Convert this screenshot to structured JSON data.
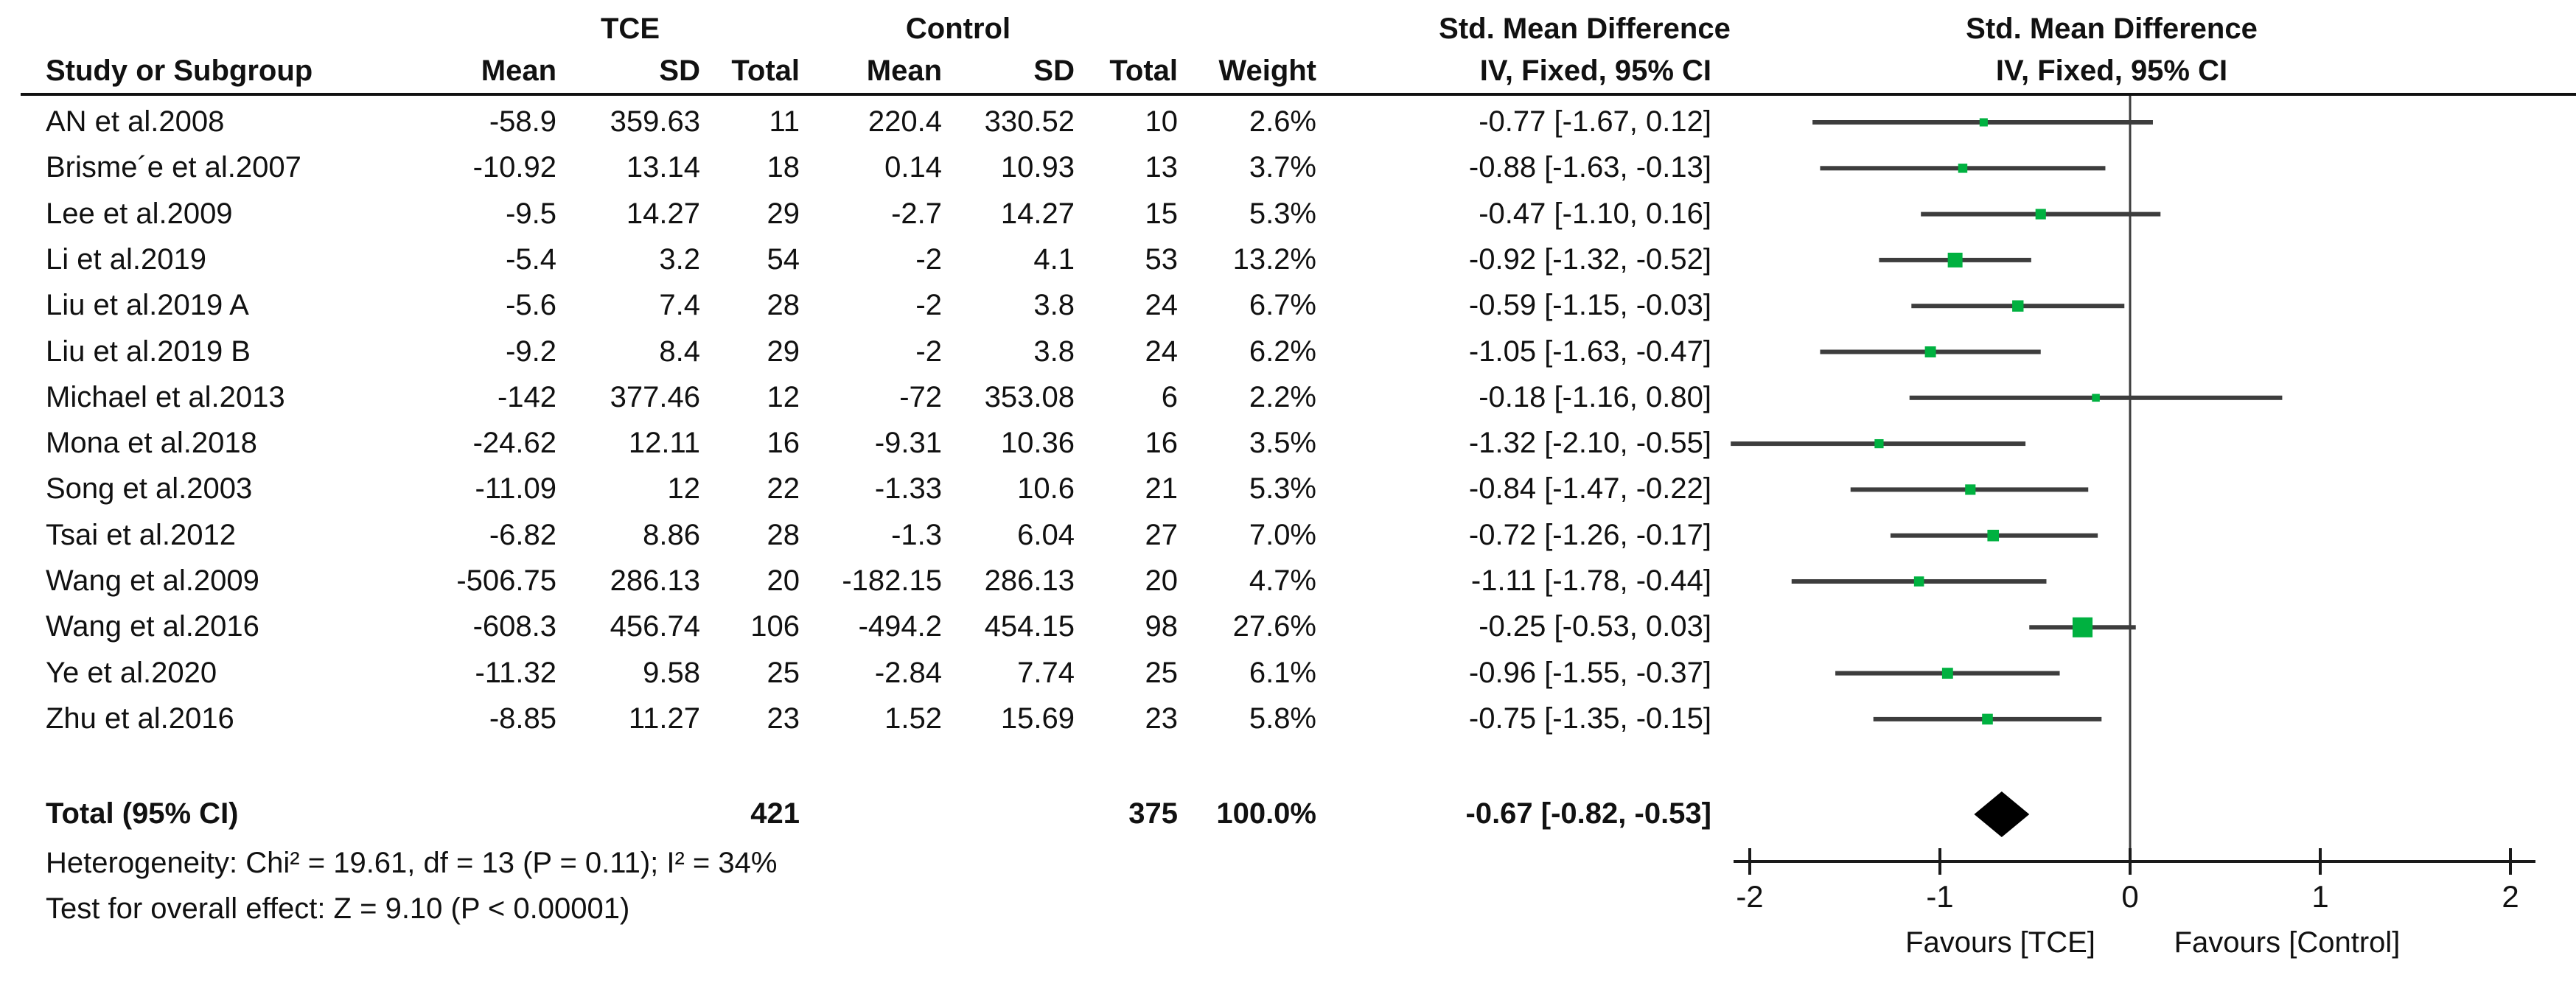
{
  "figure": {
    "background": "#ffffff"
  },
  "colors": {
    "marker": "#00B140",
    "ci_line": "#3d3d3d",
    "diamond": "#000000",
    "axis": "#1a1a1a",
    "text": "#111111"
  },
  "header": {
    "group_tce": "TCE",
    "group_control": "Control",
    "smd_title": "Std. Mean Difference",
    "smd_method": "IV, Fixed, 95% CI",
    "study": "Study or Subgroup",
    "mean": "Mean",
    "sd": "SD",
    "total": "Total",
    "weight": "Weight"
  },
  "chart_data": {
    "type": "forest",
    "effect_label": "Std. Mean Difference",
    "method_label": "IV, Fixed, 95% CI",
    "x_ticks": [
      -2,
      -1,
      0,
      1,
      2
    ],
    "xlim": [
      -2.1,
      2.13
    ],
    "favours_left": "Favours [TCE]",
    "favours_right": "Favours [Control]",
    "studies": [
      {
        "name": "AN et al.2008",
        "tce_mean": "-58.9",
        "tce_sd": "359.63",
        "tce_total": "11",
        "control_mean": "220.4",
        "control_sd": "330.52",
        "control_total": "10",
        "weight": "2.6%",
        "ci_text": "-0.77 [-1.67, 0.12]",
        "est": -0.77,
        "lo": -1.67,
        "hi": 0.12,
        "weight_pct": 2.6
      },
      {
        "name": "Brisme´e et al.2007",
        "tce_mean": "-10.92",
        "tce_sd": "13.14",
        "tce_total": "18",
        "control_mean": "0.14",
        "control_sd": "10.93",
        "control_total": "13",
        "weight": "3.7%",
        "ci_text": "-0.88 [-1.63, -0.13]",
        "est": -0.88,
        "lo": -1.63,
        "hi": -0.13,
        "weight_pct": 3.7
      },
      {
        "name": "Lee et al.2009",
        "tce_mean": "-9.5",
        "tce_sd": "14.27",
        "tce_total": "29",
        "control_mean": "-2.7",
        "control_sd": "14.27",
        "control_total": "15",
        "weight": "5.3%",
        "ci_text": "-0.47 [-1.10, 0.16]",
        "est": -0.47,
        "lo": -1.1,
        "hi": 0.16,
        "weight_pct": 5.3
      },
      {
        "name": "Li et al.2019",
        "tce_mean": "-5.4",
        "tce_sd": "3.2",
        "tce_total": "54",
        "control_mean": "-2",
        "control_sd": "4.1",
        "control_total": "53",
        "weight": "13.2%",
        "ci_text": "-0.92 [-1.32, -0.52]",
        "est": -0.92,
        "lo": -1.32,
        "hi": -0.52,
        "weight_pct": 13.2
      },
      {
        "name": "Liu et al.2019 A",
        "tce_mean": "-5.6",
        "tce_sd": "7.4",
        "tce_total": "28",
        "control_mean": "-2",
        "control_sd": "3.8",
        "control_total": "24",
        "weight": "6.7%",
        "ci_text": "-0.59 [-1.15, -0.03]",
        "est": -0.59,
        "lo": -1.15,
        "hi": -0.03,
        "weight_pct": 6.7
      },
      {
        "name": "Liu et al.2019 B",
        "tce_mean": "-9.2",
        "tce_sd": "8.4",
        "tce_total": "29",
        "control_mean": "-2",
        "control_sd": "3.8",
        "control_total": "24",
        "weight": "6.2%",
        "ci_text": "-1.05 [-1.63, -0.47]",
        "est": -1.05,
        "lo": -1.63,
        "hi": -0.47,
        "weight_pct": 6.2
      },
      {
        "name": "Michael et al.2013",
        "tce_mean": "-142",
        "tce_sd": "377.46",
        "tce_total": "12",
        "control_mean": "-72",
        "control_sd": "353.08",
        "control_total": "6",
        "weight": "2.2%",
        "ci_text": "-0.18 [-1.16, 0.80]",
        "est": -0.18,
        "lo": -1.16,
        "hi": 0.8,
        "weight_pct": 2.2
      },
      {
        "name": "Mona et al.2018",
        "tce_mean": "-24.62",
        "tce_sd": "12.11",
        "tce_total": "16",
        "control_mean": "-9.31",
        "control_sd": "10.36",
        "control_total": "16",
        "weight": "3.5%",
        "ci_text": "-1.32 [-2.10, -0.55]",
        "est": -1.32,
        "lo": -2.1,
        "hi": -0.55,
        "weight_pct": 3.5
      },
      {
        "name": "Song et al.2003",
        "tce_mean": "-11.09",
        "tce_sd": "12",
        "tce_total": "22",
        "control_mean": "-1.33",
        "control_sd": "10.6",
        "control_total": "21",
        "weight": "5.3%",
        "ci_text": "-0.84 [-1.47, -0.22]",
        "est": -0.84,
        "lo": -1.47,
        "hi": -0.22,
        "weight_pct": 5.3
      },
      {
        "name": "Tsai et al.2012",
        "tce_mean": "-6.82",
        "tce_sd": "8.86",
        "tce_total": "28",
        "control_mean": "-1.3",
        "control_sd": "6.04",
        "control_total": "27",
        "weight": "7.0%",
        "ci_text": "-0.72 [-1.26, -0.17]",
        "est": -0.72,
        "lo": -1.26,
        "hi": -0.17,
        "weight_pct": 7.0
      },
      {
        "name": "Wang et al.2009",
        "tce_mean": "-506.75",
        "tce_sd": "286.13",
        "tce_total": "20",
        "control_mean": "-182.15",
        "control_sd": "286.13",
        "control_total": "20",
        "weight": "4.7%",
        "ci_text": "-1.11 [-1.78, -0.44]",
        "est": -1.11,
        "lo": -1.78,
        "hi": -0.44,
        "weight_pct": 4.7
      },
      {
        "name": "Wang et al.2016",
        "tce_mean": "-608.3",
        "tce_sd": "456.74",
        "tce_total": "106",
        "control_mean": "-494.2",
        "control_sd": "454.15",
        "control_total": "98",
        "weight": "27.6%",
        "ci_text": "-0.25 [-0.53, 0.03]",
        "est": -0.25,
        "lo": -0.53,
        "hi": 0.03,
        "weight_pct": 27.6
      },
      {
        "name": "Ye et al.2020",
        "tce_mean": "-11.32",
        "tce_sd": "9.58",
        "tce_total": "25",
        "control_mean": "-2.84",
        "control_sd": "7.74",
        "control_total": "25",
        "weight": "6.1%",
        "ci_text": "-0.96 [-1.55, -0.37]",
        "est": -0.96,
        "lo": -1.55,
        "hi": -0.37,
        "weight_pct": 6.1
      },
      {
        "name": "Zhu et al.2016",
        "tce_mean": "-8.85",
        "tce_sd": "11.27",
        "tce_total": "23",
        "control_mean": "1.52",
        "control_sd": "15.69",
        "control_total": "23",
        "weight": "5.8%",
        "ci_text": "-0.75 [-1.35, -0.15]",
        "est": -0.75,
        "lo": -1.35,
        "hi": -0.15,
        "weight_pct": 5.8
      }
    ],
    "total": {
      "label": "Total (95% CI)",
      "tce_total": "421",
      "control_total": "375",
      "weight": "100.0%",
      "ci_text": "-0.67 [-0.82, -0.53]",
      "est": -0.67,
      "lo": -0.82,
      "hi": -0.53
    },
    "heterogeneity": "Heterogeneity: Chi² = 19.61, df = 13 (P = 0.11); I² = 34%",
    "overall_effect": "Test for overall effect: Z = 9.10 (P < 0.00001)"
  }
}
